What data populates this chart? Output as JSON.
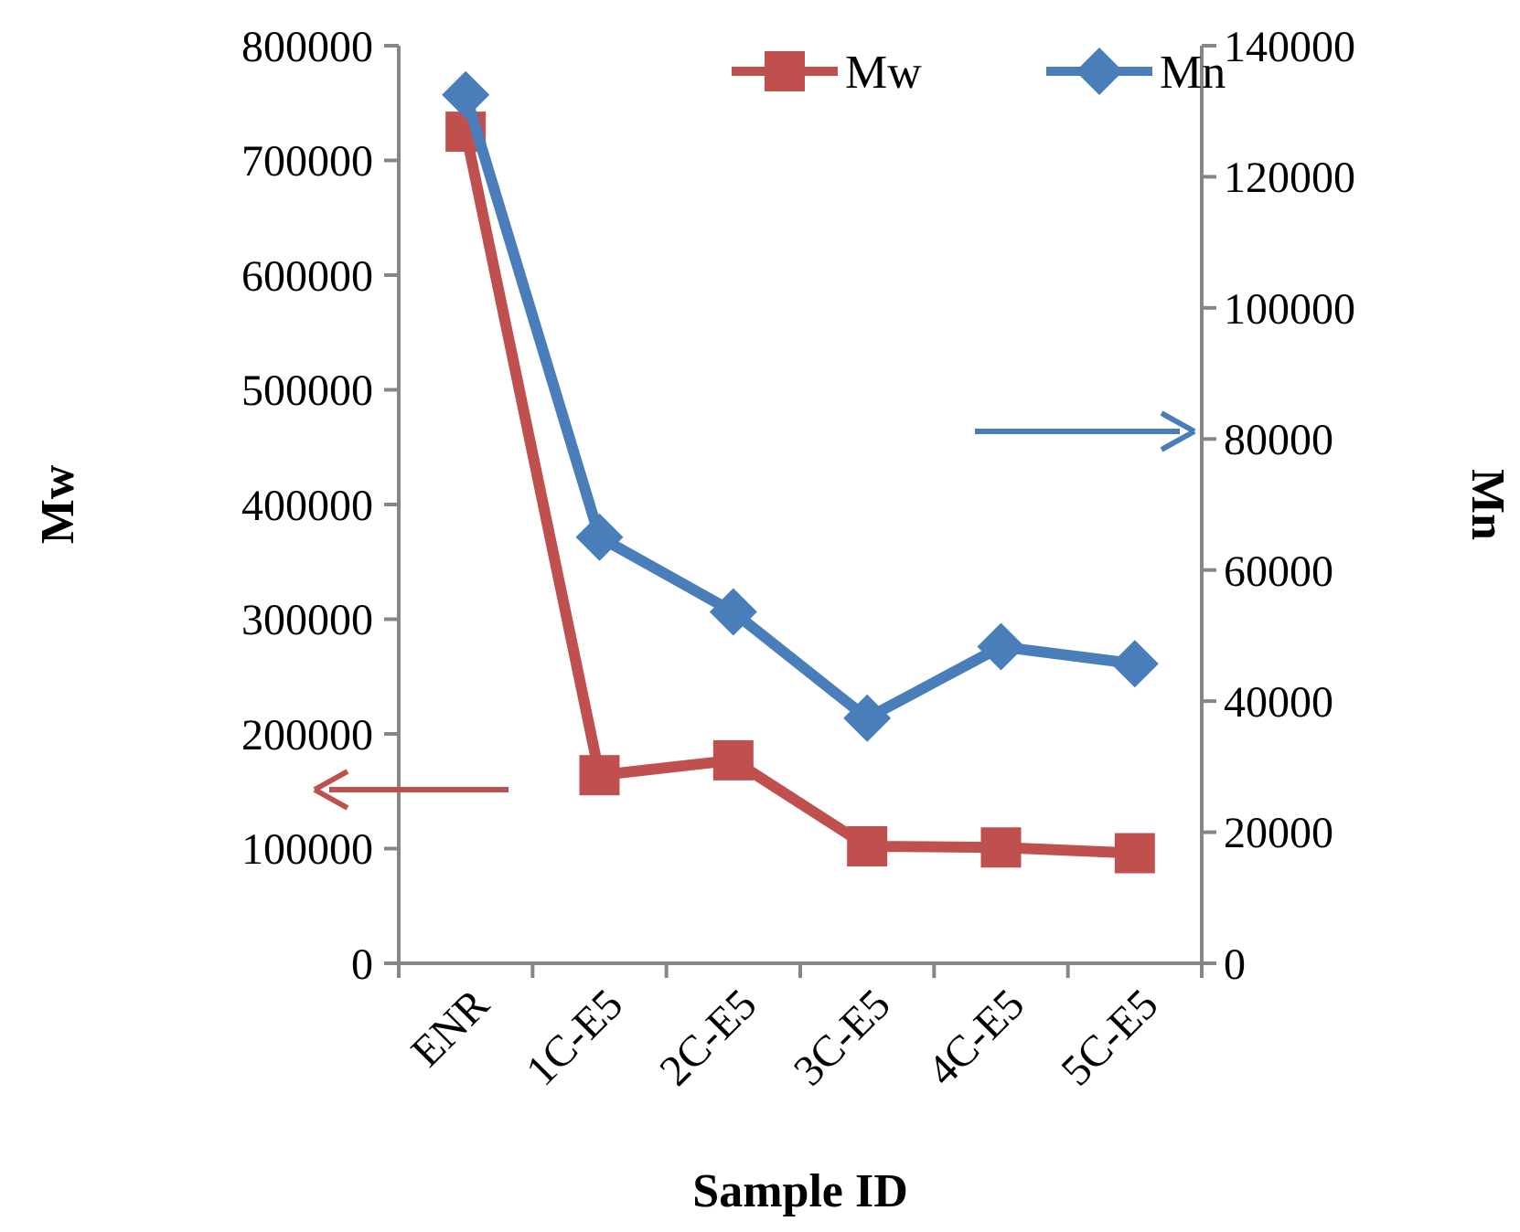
{
  "chart_data": {
    "type": "line",
    "xlabel": "Sample ID",
    "ylabel": "Mw",
    "y2label": "Mn",
    "categories": [
      "ENR",
      "1C-E5",
      "2C-E5",
      "3C-E5",
      "4C-E5",
      "5C-E5"
    ],
    "series": [
      {
        "name": "Mw",
        "color": "#c0504d",
        "marker": "square",
        "values": [
          725000,
          164000,
          177000,
          102000,
          101000,
          96000
        ]
      },
      {
        "name": "Mn",
        "color": "#4a7ebb",
        "marker": "diamond",
        "axis": "y2",
        "values": [
          132500,
          65000,
          53600,
          37400,
          48300,
          45700
        ]
      }
    ],
    "ylim": [
      0,
      800000
    ],
    "yticks": [
      0,
      100000,
      200000,
      300000,
      400000,
      500000,
      600000,
      700000,
      800000
    ],
    "y2lim": [
      0,
      140000
    ],
    "y2ticks": [
      0,
      20000,
      40000,
      60000,
      80000,
      100000,
      120000,
      140000
    ],
    "legend": "top right",
    "grid": false,
    "line_style": "solid"
  }
}
